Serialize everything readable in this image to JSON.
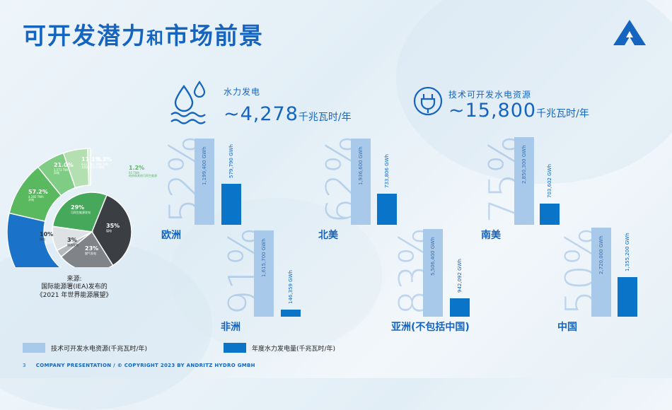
{
  "title": {
    "part1": "可开发潜力",
    "part2": "和",
    "part3": "市场前景"
  },
  "hydro": {
    "label": "水力发电",
    "value": "~4,278",
    "unit": "千兆瓦时/年"
  },
  "resource": {
    "label": "技术可开发水电资源",
    "value": "~15,800",
    "unit": "千兆瓦时/年"
  },
  "regions": [
    {
      "name": "欧洲",
      "pct": "52%",
      "tech": "1,199,400 GWh",
      "annual": "579,790 GWh",
      "tech_value": 1199400,
      "annual_value": 579790
    },
    {
      "name": "北美",
      "pct": "62%",
      "tech": "1,936,600 GWh",
      "annual": "733,806 GWh",
      "tech_value": 1936600,
      "annual_value": 733806
    },
    {
      "name": "南美",
      "pct": "75%",
      "tech": "2,850,300 GWh",
      "annual": "703,602 GWh",
      "tech_value": 2850300,
      "annual_value": 703602
    },
    {
      "name": "非洲",
      "pct": "91%",
      "tech": "1,615,700 GWh",
      "annual": "146,359 GWh",
      "tech_value": 1615700,
      "annual_value": 146359
    },
    {
      "name": "亚洲(不包括中国)",
      "pct": "83%",
      "tech": "5,506,400 GWh",
      "annual": "942,092 GWh",
      "tech_value": 5506400,
      "annual_value": 942092
    },
    {
      "name": "中国",
      "pct": "50%",
      "tech": "2,720,000 GWh",
      "annual": "1,355,200 GWh",
      "tech_value": 2720000,
      "annual_value": 1355200
    }
  ],
  "donut_outer": [
    {
      "pct": "57.2%",
      "sub1": "4,282 TWh",
      "sub2": "水电",
      "color": "#1a73c8"
    },
    {
      "pct": "21.0%",
      "sub1": "1,573 TWh",
      "sub2": "风电",
      "color": "#5ab95e"
    },
    {
      "pct": "11.1%",
      "sub1": "833 TWh",
      "sub2": "太阳能光伏",
      "color": "#7fcc84"
    },
    {
      "pct": "9.3%",
      "sub1": "698 TWh",
      "sub2": "生物能",
      "color": "#b3dfb1"
    },
    {
      "pct": "1.2%",
      "sub1": "93 TWh",
      "sub2": "地热和其他可再生能源",
      "color": "#d8eed5"
    }
  ],
  "donut_inner": [
    {
      "pct": "29%",
      "sub": "可再生能源发电",
      "color": "#45a85a"
    },
    {
      "pct": "35%",
      "sub": "煤电",
      "color": "#3b3f44"
    },
    {
      "pct": "23%",
      "sub": "燃气发电",
      "color": "#808489"
    },
    {
      "pct": "3%",
      "sub": "燃油发电",
      "color": "#b5b8bb"
    },
    {
      "pct": "10%",
      "sub": "核电",
      "color": "#dfe2e4"
    }
  ],
  "source": {
    "line1": "来源:",
    "line2": "国际能源署(IEA)发布的",
    "line3": "《2021 年世界能源展望》"
  },
  "legend": {
    "tech": "技术可开发水电资源(千兆瓦时/年)",
    "annual": "年度水力发电量(千兆瓦时/年)"
  },
  "footer": {
    "page": "3",
    "text": "COMPANY PRESENTATION / © COPYRIGHT 2023 BY ANDRITZ HYDRO GMBH"
  },
  "colors": {
    "brand": "#1565c0",
    "tech_bar": "#a9c9ea",
    "annual_bar": "#0a74c9"
  }
}
